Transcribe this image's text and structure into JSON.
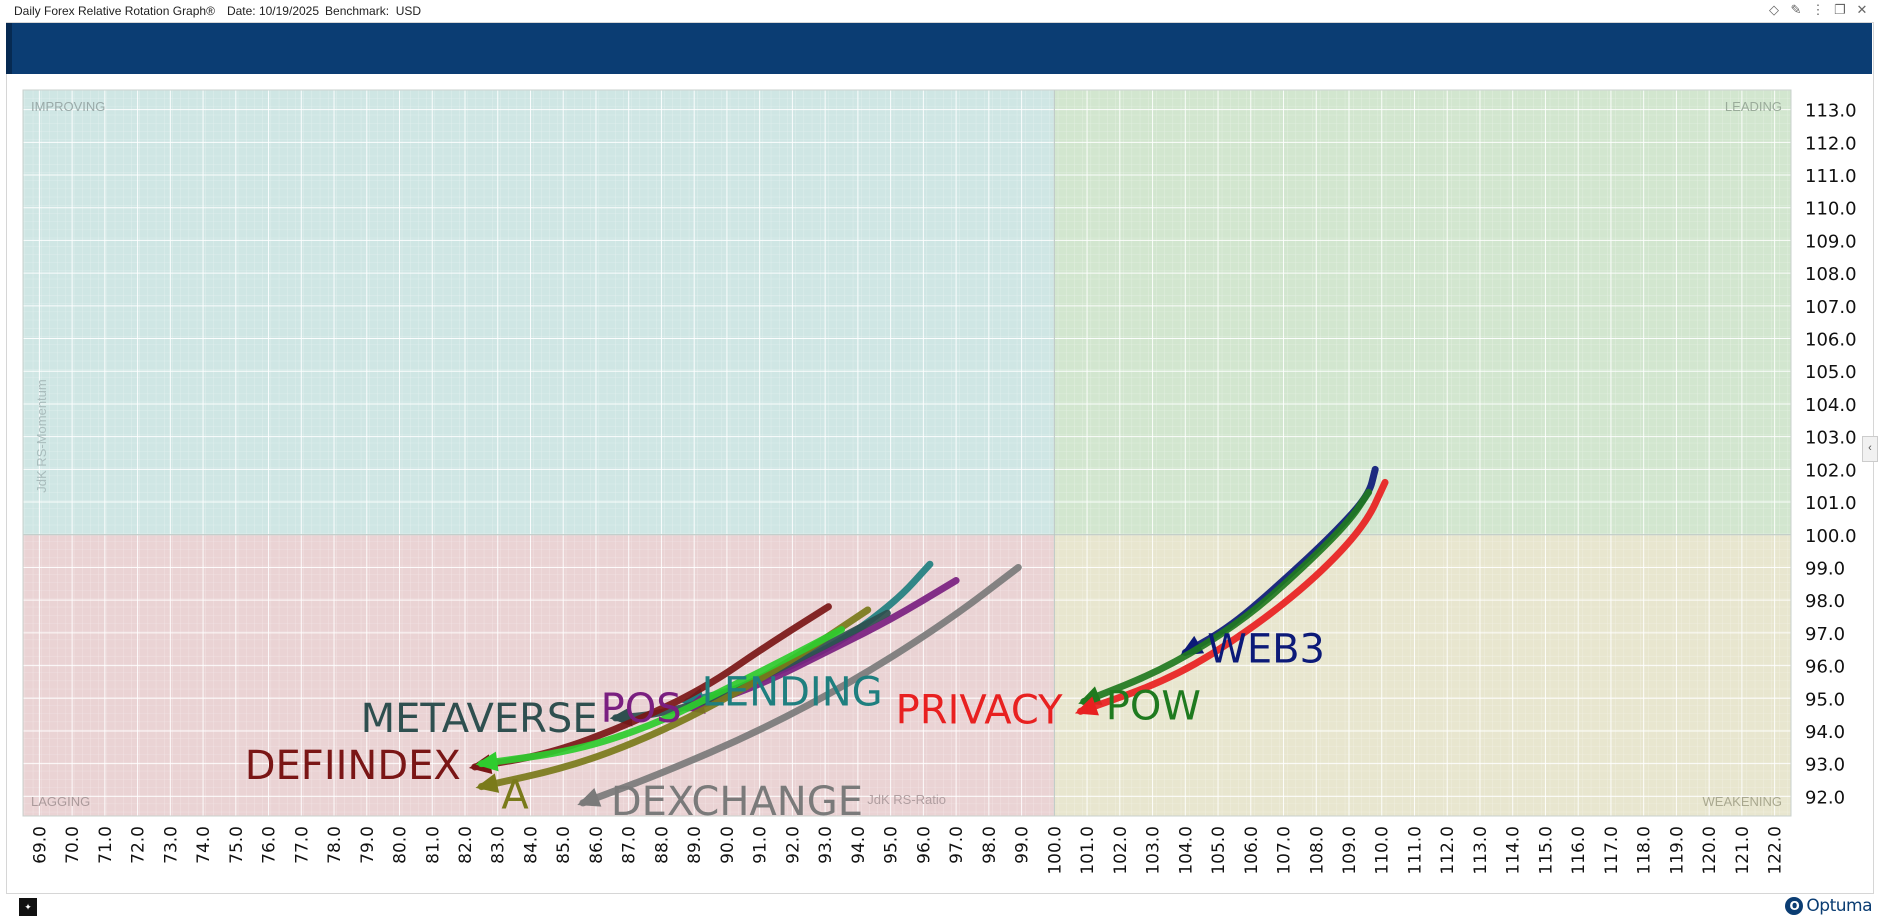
{
  "window": {
    "title": "Daily Forex Relative Rotation Graph®",
    "date_label": "Date: 10/19/2025",
    "benchmark_label": "Benchmark:  USD"
  },
  "controls": [
    "diamond-icon",
    "pin-icon",
    "more-icon",
    "restore-icon",
    "close-icon"
  ],
  "quadrants": {
    "improving": "IMPROVING",
    "leading": "LEADING",
    "lagging": "LAGGING",
    "weakening": "WEAKENING"
  },
  "colors": {
    "improving": "#cfe6e4",
    "leading": "#d2e6cf",
    "lagging": "#ead3d4",
    "weakening": "#e8e6cf",
    "banner": "#0b3d73",
    "grid": "#ffffff"
  },
  "chart_data": {
    "type": "scatter",
    "title": "Daily Forex Relative Rotation Graph",
    "xlabel": "JdK RS-Ratio",
    "ylabel": "JdK RS-Momentum",
    "xlim": [
      68.5,
      122.5
    ],
    "ylim": [
      91.4,
      113.6
    ],
    "x_ticks": [
      "69.0",
      "70.0",
      "71.0",
      "72.0",
      "73.0",
      "74.0",
      "75.0",
      "76.0",
      "77.0",
      "78.0",
      "79.0",
      "80.0",
      "81.0",
      "82.0",
      "83.0",
      "84.0",
      "85.0",
      "86.0",
      "87.0",
      "88.0",
      "89.0",
      "90.0",
      "91.0",
      "92.0",
      "93.0",
      "94.0",
      "95.0",
      "96.0",
      "97.0",
      "98.0",
      "99.0",
      "100.0",
      "101.0",
      "102.0",
      "103.0",
      "104.0",
      "105.0",
      "106.0",
      "107.0",
      "108.0",
      "109.0",
      "110.0",
      "111.0",
      "112.0",
      "113.0",
      "114.0",
      "115.0",
      "116.0",
      "117.0",
      "118.0",
      "119.0",
      "120.0",
      "121.0",
      "122.0"
    ],
    "y_ticks": [
      "92.0",
      "93.0",
      "94.0",
      "95.0",
      "96.0",
      "97.0",
      "98.0",
      "99.0",
      "100.0",
      "101.0",
      "102.0",
      "103.0",
      "104.0",
      "105.0",
      "106.0",
      "107.0",
      "108.0",
      "109.0",
      "110.0",
      "111.0",
      "112.0",
      "113.0"
    ],
    "series": [
      {
        "name": "WEB3",
        "color": "#0c1a78",
        "label_color": "#0c1a78",
        "points": [
          [
            109.8,
            102.0
          ],
          [
            109.6,
            101.2
          ],
          [
            108.5,
            100.0
          ],
          [
            107.0,
            98.6
          ],
          [
            105.4,
            97.2
          ],
          [
            104.0,
            96.4
          ]
        ]
      },
      {
        "name": "POW",
        "color": "#1f7a1f",
        "label_color": "#1f7a1f",
        "points": [
          [
            109.6,
            101.3
          ],
          [
            109.0,
            100.4
          ],
          [
            107.6,
            99.0
          ],
          [
            105.8,
            97.4
          ],
          [
            103.4,
            95.9
          ],
          [
            100.9,
            94.9
          ]
        ]
      },
      {
        "name": "PRIVACY",
        "color": "#e82020",
        "label_color": "#e82020",
        "points": [
          [
            110.1,
            101.6
          ],
          [
            109.5,
            100.3
          ],
          [
            108.0,
            98.7
          ],
          [
            106.0,
            97.1
          ],
          [
            103.6,
            95.6
          ],
          [
            100.8,
            94.6
          ]
        ]
      },
      {
        "name": "DEXCHANGE",
        "color": "#7a7a7a",
        "label_color": "#7a7a7a",
        "points": [
          [
            98.9,
            99.0
          ],
          [
            96.8,
            97.4
          ],
          [
            94.0,
            95.6
          ],
          [
            91.0,
            94.0
          ],
          [
            88.0,
            92.7
          ],
          [
            85.6,
            91.8
          ]
        ]
      },
      {
        "name": "LENDING",
        "color": "#1f7f7f",
        "label_color": "#1f7f7f",
        "points": [
          [
            96.2,
            99.1
          ],
          [
            95.2,
            98.0
          ],
          [
            93.6,
            96.8
          ],
          [
            92.0,
            96.0
          ],
          [
            90.4,
            95.3
          ],
          [
            88.8,
            94.9
          ]
        ]
      },
      {
        "name": "POS",
        "color": "#7a1f80",
        "label_color": "#7a1f80",
        "points": [
          [
            97.0,
            98.6
          ],
          [
            95.0,
            97.4
          ],
          [
            93.0,
            96.4
          ],
          [
            91.2,
            95.5
          ],
          [
            89.6,
            94.9
          ],
          [
            88.8,
            94.7
          ]
        ]
      },
      {
        "name": "METAVERSE",
        "color": "#2f4f4f",
        "label_color": "#2f4f4f",
        "points": [
          [
            94.9,
            97.6
          ],
          [
            93.0,
            96.6
          ],
          [
            91.0,
            95.6
          ],
          [
            89.4,
            94.9
          ],
          [
            87.8,
            94.5
          ],
          [
            86.6,
            94.4
          ]
        ]
      },
      {
        "name": "DEFIINDEX",
        "color": "#7a1616",
        "label_color": "#7a1616",
        "points": [
          [
            93.1,
            97.8
          ],
          [
            91.2,
            96.6
          ],
          [
            89.3,
            95.3
          ],
          [
            87.0,
            94.2
          ],
          [
            84.6,
            93.3
          ],
          [
            82.3,
            92.9
          ]
        ]
      },
      {
        "name": "A",
        "color": "#7a7a1a",
        "label_color": "#7a7a1a",
        "points": [
          [
            94.3,
            97.7
          ],
          [
            92.2,
            96.3
          ],
          [
            90.0,
            95.0
          ],
          [
            87.6,
            93.8
          ],
          [
            85.2,
            92.9
          ],
          [
            82.5,
            92.3
          ]
        ]
      },
      {
        "name": "",
        "color": "#2ecc2e",
        "label_color": "#2ecc2e",
        "points": [
          [
            93.5,
            97.1
          ],
          [
            91.6,
            96.1
          ],
          [
            89.8,
            95.2
          ],
          [
            87.8,
            94.2
          ],
          [
            85.4,
            93.4
          ],
          [
            82.5,
            93.0
          ]
        ]
      }
    ]
  }
}
